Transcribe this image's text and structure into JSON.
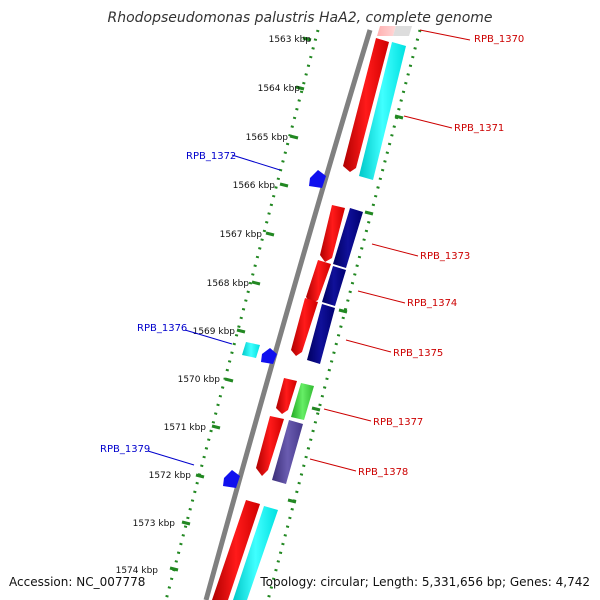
{
  "title": "Rhodopseudomonas palustris HaA2, complete genome",
  "footer": {
    "accession": "Accession: NC_007778",
    "summary": "Topology: circular; Length: 5,331,656 bp; Genes: 4,742"
  },
  "scale": {
    "ticks": [
      "1563 kbp",
      "1564 kbp",
      "1565 kbp",
      "1566 kbp",
      "1567 kbp",
      "1568 kbp",
      "1569 kbp",
      "1570 kbp",
      "1571 kbp",
      "1572 kbp",
      "1573 kbp",
      "1574 kbp"
    ]
  },
  "genes_left": [
    {
      "label": "RPB_1372",
      "color": "#0000cc"
    },
    {
      "label": "RPB_1376",
      "color": "#0000cc"
    },
    {
      "label": "RPB_1379",
      "color": "#0000cc"
    }
  ],
  "genes_right": [
    {
      "label": "RPB_1370",
      "color": "#cc0000"
    },
    {
      "label": "RPB_1371",
      "color": "#cc0000"
    },
    {
      "label": "RPB_1373",
      "color": "#cc0000"
    },
    {
      "label": "RPB_1374",
      "color": "#cc0000"
    },
    {
      "label": "RPB_1375",
      "color": "#cc0000"
    },
    {
      "label": "RPB_1377",
      "color": "#cc0000"
    },
    {
      "label": "RPB_1378",
      "color": "#cc0000"
    }
  ],
  "colors": {
    "backbone": "#808080",
    "ruler": "#228822",
    "cds": "#ff0000",
    "rrna": "#00ffff",
    "trna": "#0000ff",
    "navy": "#000080",
    "green": "#33cc33",
    "purple": "#4b3c8c"
  }
}
